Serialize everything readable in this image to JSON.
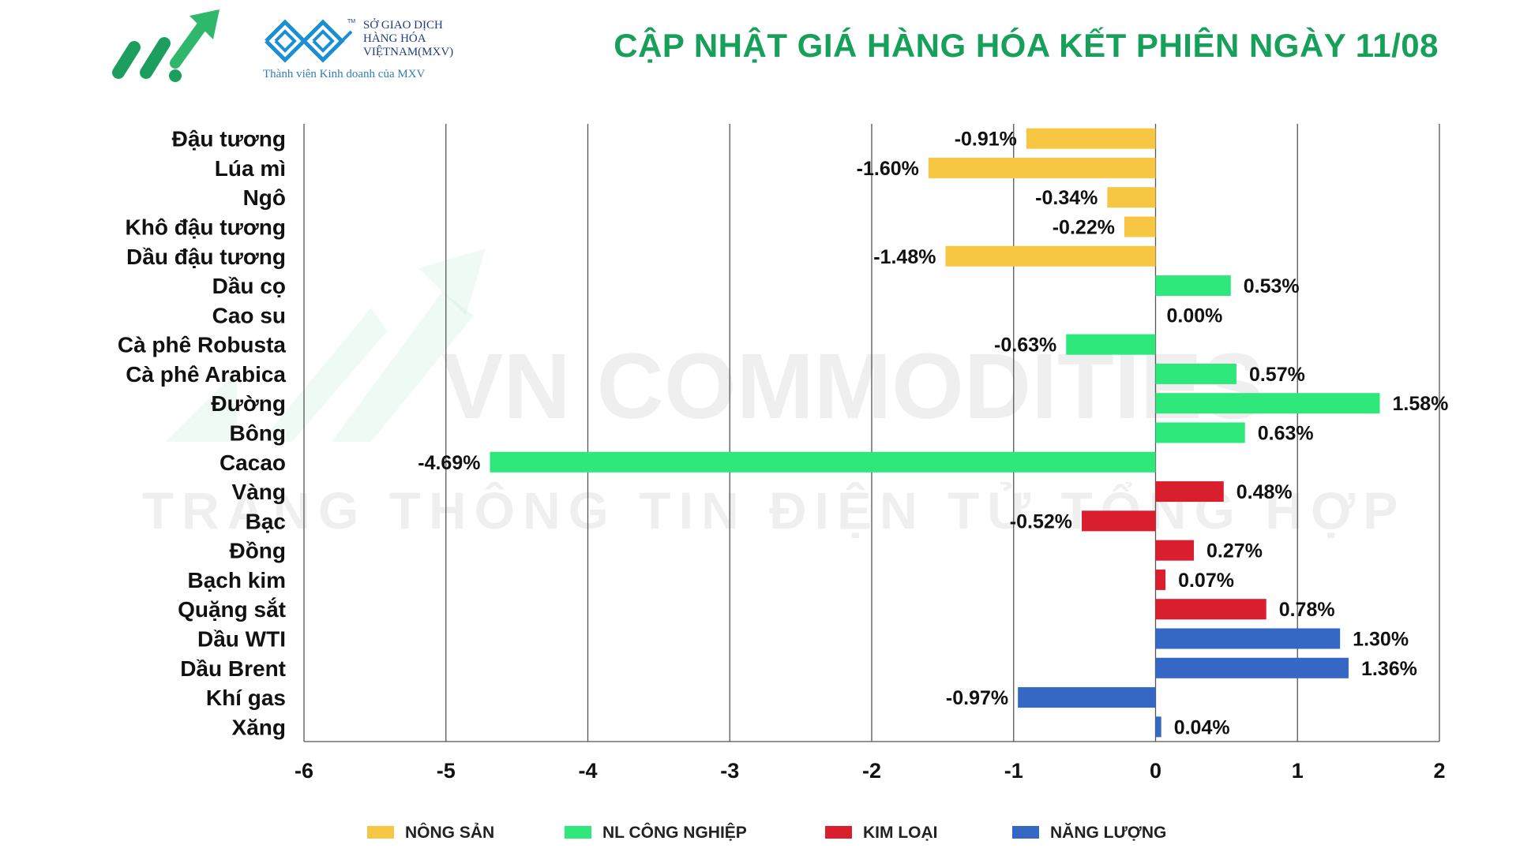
{
  "header": {
    "title": "CẬP NHẬT GIÁ HÀNG HÓA KẾT PHIÊN NGÀY 11/08",
    "mxv_line1": "SỞ GIAO DỊCH",
    "mxv_line2": "HÀNG HÓA",
    "mxv_line3": "VIỆTNAM(MXV)",
    "mxv_tm": "TM",
    "mxv_subtitle": "Thành viên Kinh doanh của MXV"
  },
  "watermark": {
    "line1": "VN COMMODITIES",
    "line2": "TRANG THÔNG TIN ĐIỆN TỬ TỔNG HỢP"
  },
  "colors": {
    "nong_san": "#f7c744",
    "nl_cong_nghiep": "#2ee87c",
    "kim_loai": "#d91e2e",
    "nang_luong": "#3568c4",
    "title": "#17a05a"
  },
  "chart_data": {
    "type": "bar",
    "orientation": "horizontal",
    "title": "CẬP NHẬT GIÁ HÀNG HÓA KẾT PHIÊN NGÀY 11/08",
    "xlim": [
      -6,
      2
    ],
    "xticks": [
      -6,
      -5,
      -4,
      -3,
      -2,
      -1,
      0,
      1,
      2
    ],
    "grid": "vertical",
    "legend_position": "bottom",
    "categories": [
      "Đậu tương",
      "Lúa mì",
      "Ngô",
      "Khô đậu tương",
      "Dầu đậu tương",
      "Dầu cọ",
      "Cao su",
      "Cà phê Robusta",
      "Cà phê Arabica",
      "Đường",
      "Bông",
      "Cacao",
      "Vàng",
      "Bạc",
      "Đồng",
      "Bạch kim",
      "Quặng sắt",
      "Dầu WTI",
      "Dầu Brent",
      "Khí gas",
      "Xăng"
    ],
    "values": [
      -0.91,
      -1.6,
      -0.34,
      -0.22,
      -1.48,
      0.53,
      0.0,
      -0.63,
      0.57,
      1.58,
      0.63,
      -4.69,
      0.48,
      -0.52,
      0.27,
      0.07,
      0.78,
      1.3,
      1.36,
      -0.97,
      0.04
    ],
    "labels": [
      "-0.91%",
      "-1.60%",
      "-0.34%",
      "-0.22%",
      "-1.48%",
      "0.53%",
      "0.00%",
      "-0.63%",
      "0.57%",
      "1.58%",
      "0.63%",
      "-4.69%",
      "0.48%",
      "-0.52%",
      "0.27%",
      "0.07%",
      "0.78%",
      "1.30%",
      "1.36%",
      "-0.97%",
      "0.04%"
    ],
    "groups": [
      "nong_san",
      "nong_san",
      "nong_san",
      "nong_san",
      "nong_san",
      "nl_cong_nghiep",
      "nl_cong_nghiep",
      "nl_cong_nghiep",
      "nl_cong_nghiep",
      "nl_cong_nghiep",
      "nl_cong_nghiep",
      "nl_cong_nghiep",
      "kim_loai",
      "kim_loai",
      "kim_loai",
      "kim_loai",
      "kim_loai",
      "nang_luong",
      "nang_luong",
      "nang_luong",
      "nang_luong"
    ],
    "legend": [
      {
        "key": "nong_san",
        "label": "NÔNG SẢN"
      },
      {
        "key": "nl_cong_nghiep",
        "label": "NL CÔNG NGHIỆP"
      },
      {
        "key": "kim_loai",
        "label": "KIM LOẠI"
      },
      {
        "key": "nang_luong",
        "label": "NĂNG LƯỢNG"
      }
    ]
  }
}
